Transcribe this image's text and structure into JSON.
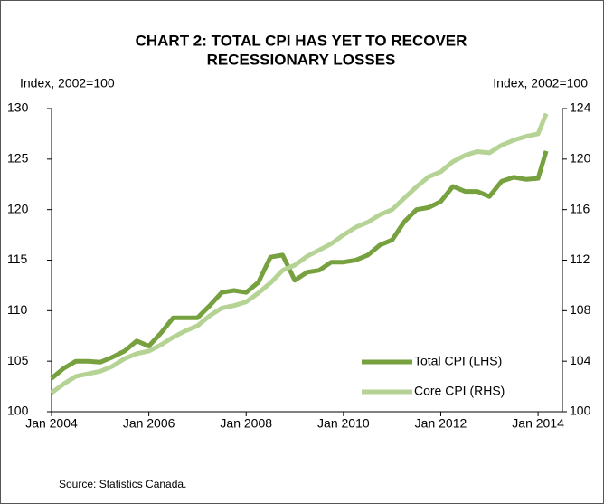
{
  "chart_data": {
    "type": "line",
    "title": [
      "CHART 2: TOTAL CPI HAS YET TO RECOVER",
      "RECESSIONARY LOSSES"
    ],
    "ylabel": "Index, 2002=100",
    "y2label": "Index, 2002=100",
    "source": "Source: Statistics Canada.",
    "x": [
      "2004-01",
      "2004-04",
      "2004-07",
      "2004-10",
      "2005-01",
      "2005-04",
      "2005-07",
      "2005-10",
      "2006-01",
      "2006-04",
      "2006-07",
      "2006-10",
      "2007-01",
      "2007-04",
      "2007-07",
      "2007-10",
      "2008-01",
      "2008-04",
      "2008-07",
      "2008-10",
      "2009-01",
      "2009-04",
      "2009-07",
      "2009-10",
      "2010-01",
      "2010-04",
      "2010-07",
      "2010-10",
      "2011-01",
      "2011-04",
      "2011-07",
      "2011-10",
      "2012-01",
      "2012-04",
      "2012-07",
      "2012-10",
      "2013-01",
      "2013-04",
      "2013-07",
      "2013-10",
      "2014-01",
      "2014-03"
    ],
    "xlim": [
      "2004-01",
      "2014-07"
    ],
    "xticks": [
      {
        "value": "2004-01",
        "label": "Jan 2004"
      },
      {
        "value": "2006-01",
        "label": "Jan 2006"
      },
      {
        "value": "2008-01",
        "label": "Jan 2008"
      },
      {
        "value": "2010-01",
        "label": "Jan 2010"
      },
      {
        "value": "2012-01",
        "label": "Jan 2012"
      },
      {
        "value": "2014-01",
        "label": "Jan 2014"
      }
    ],
    "ylim": [
      100,
      130
    ],
    "yticks": [
      100,
      105,
      110,
      115,
      120,
      125,
      130
    ],
    "y2lim": [
      100,
      124
    ],
    "y2ticks": [
      100,
      104,
      108,
      112,
      116,
      120,
      124
    ],
    "legend": "lower right",
    "series": [
      {
        "name": "Total CPI (LHS)",
        "color": "#77a03f",
        "axis": "y",
        "values": [
          103.3,
          104.3,
          105.0,
          105.0,
          104.9,
          105.4,
          106.0,
          107.0,
          106.5,
          107.8,
          109.3,
          109.3,
          109.3,
          110.5,
          111.8,
          112.0,
          111.8,
          112.8,
          115.3,
          115.5,
          113.0,
          113.8,
          114.0,
          114.8,
          114.8,
          115.0,
          115.5,
          116.5,
          117.0,
          118.8,
          120.0,
          120.2,
          120.8,
          122.3,
          121.8,
          121.8,
          121.3,
          122.8,
          123.2,
          123.0,
          123.1,
          125.8
        ]
      },
      {
        "name": "Core CPI (RHS)",
        "color": "#b5d394",
        "axis": "y2",
        "values": [
          101.5,
          102.2,
          102.8,
          103.0,
          103.2,
          103.6,
          104.2,
          104.6,
          104.8,
          105.3,
          105.9,
          106.4,
          106.8,
          107.6,
          108.2,
          108.4,
          108.7,
          109.4,
          110.2,
          111.2,
          111.6,
          112.3,
          112.8,
          113.3,
          114.0,
          114.6,
          115.0,
          115.6,
          116.0,
          116.9,
          117.8,
          118.6,
          119.0,
          119.8,
          120.3,
          120.6,
          120.5,
          121.1,
          121.5,
          121.8,
          122.0,
          123.6
        ]
      }
    ]
  }
}
